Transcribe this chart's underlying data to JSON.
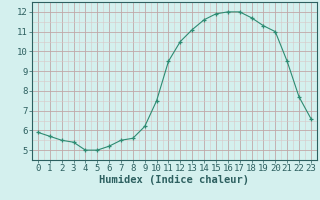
{
  "x": [
    0,
    1,
    2,
    3,
    4,
    5,
    6,
    7,
    8,
    9,
    10,
    11,
    12,
    13,
    14,
    15,
    16,
    17,
    18,
    19,
    20,
    21,
    22,
    23
  ],
  "y": [
    5.9,
    5.7,
    5.5,
    5.4,
    5.0,
    5.0,
    5.2,
    5.5,
    5.6,
    6.2,
    7.5,
    9.5,
    10.5,
    11.1,
    11.6,
    11.9,
    12.0,
    12.0,
    11.7,
    11.3,
    11.0,
    9.5,
    7.7,
    6.6
  ],
  "xlabel": "Humidex (Indice chaleur)",
  "line_color": "#2d8b72",
  "bg_color": "#d4f0ee",
  "grid_major_color": "#c0a8a8",
  "grid_minor_color": "#d8c8c8",
  "ylim": [
    4.5,
    12.5
  ],
  "xlim": [
    -0.5,
    23.5
  ],
  "yticks": [
    5,
    6,
    7,
    8,
    9,
    10,
    11,
    12
  ],
  "xticks": [
    0,
    1,
    2,
    3,
    4,
    5,
    6,
    7,
    8,
    9,
    10,
    11,
    12,
    13,
    14,
    15,
    16,
    17,
    18,
    19,
    20,
    21,
    22,
    23
  ],
  "tick_fontsize": 6.5,
  "xlabel_fontsize": 7.5
}
